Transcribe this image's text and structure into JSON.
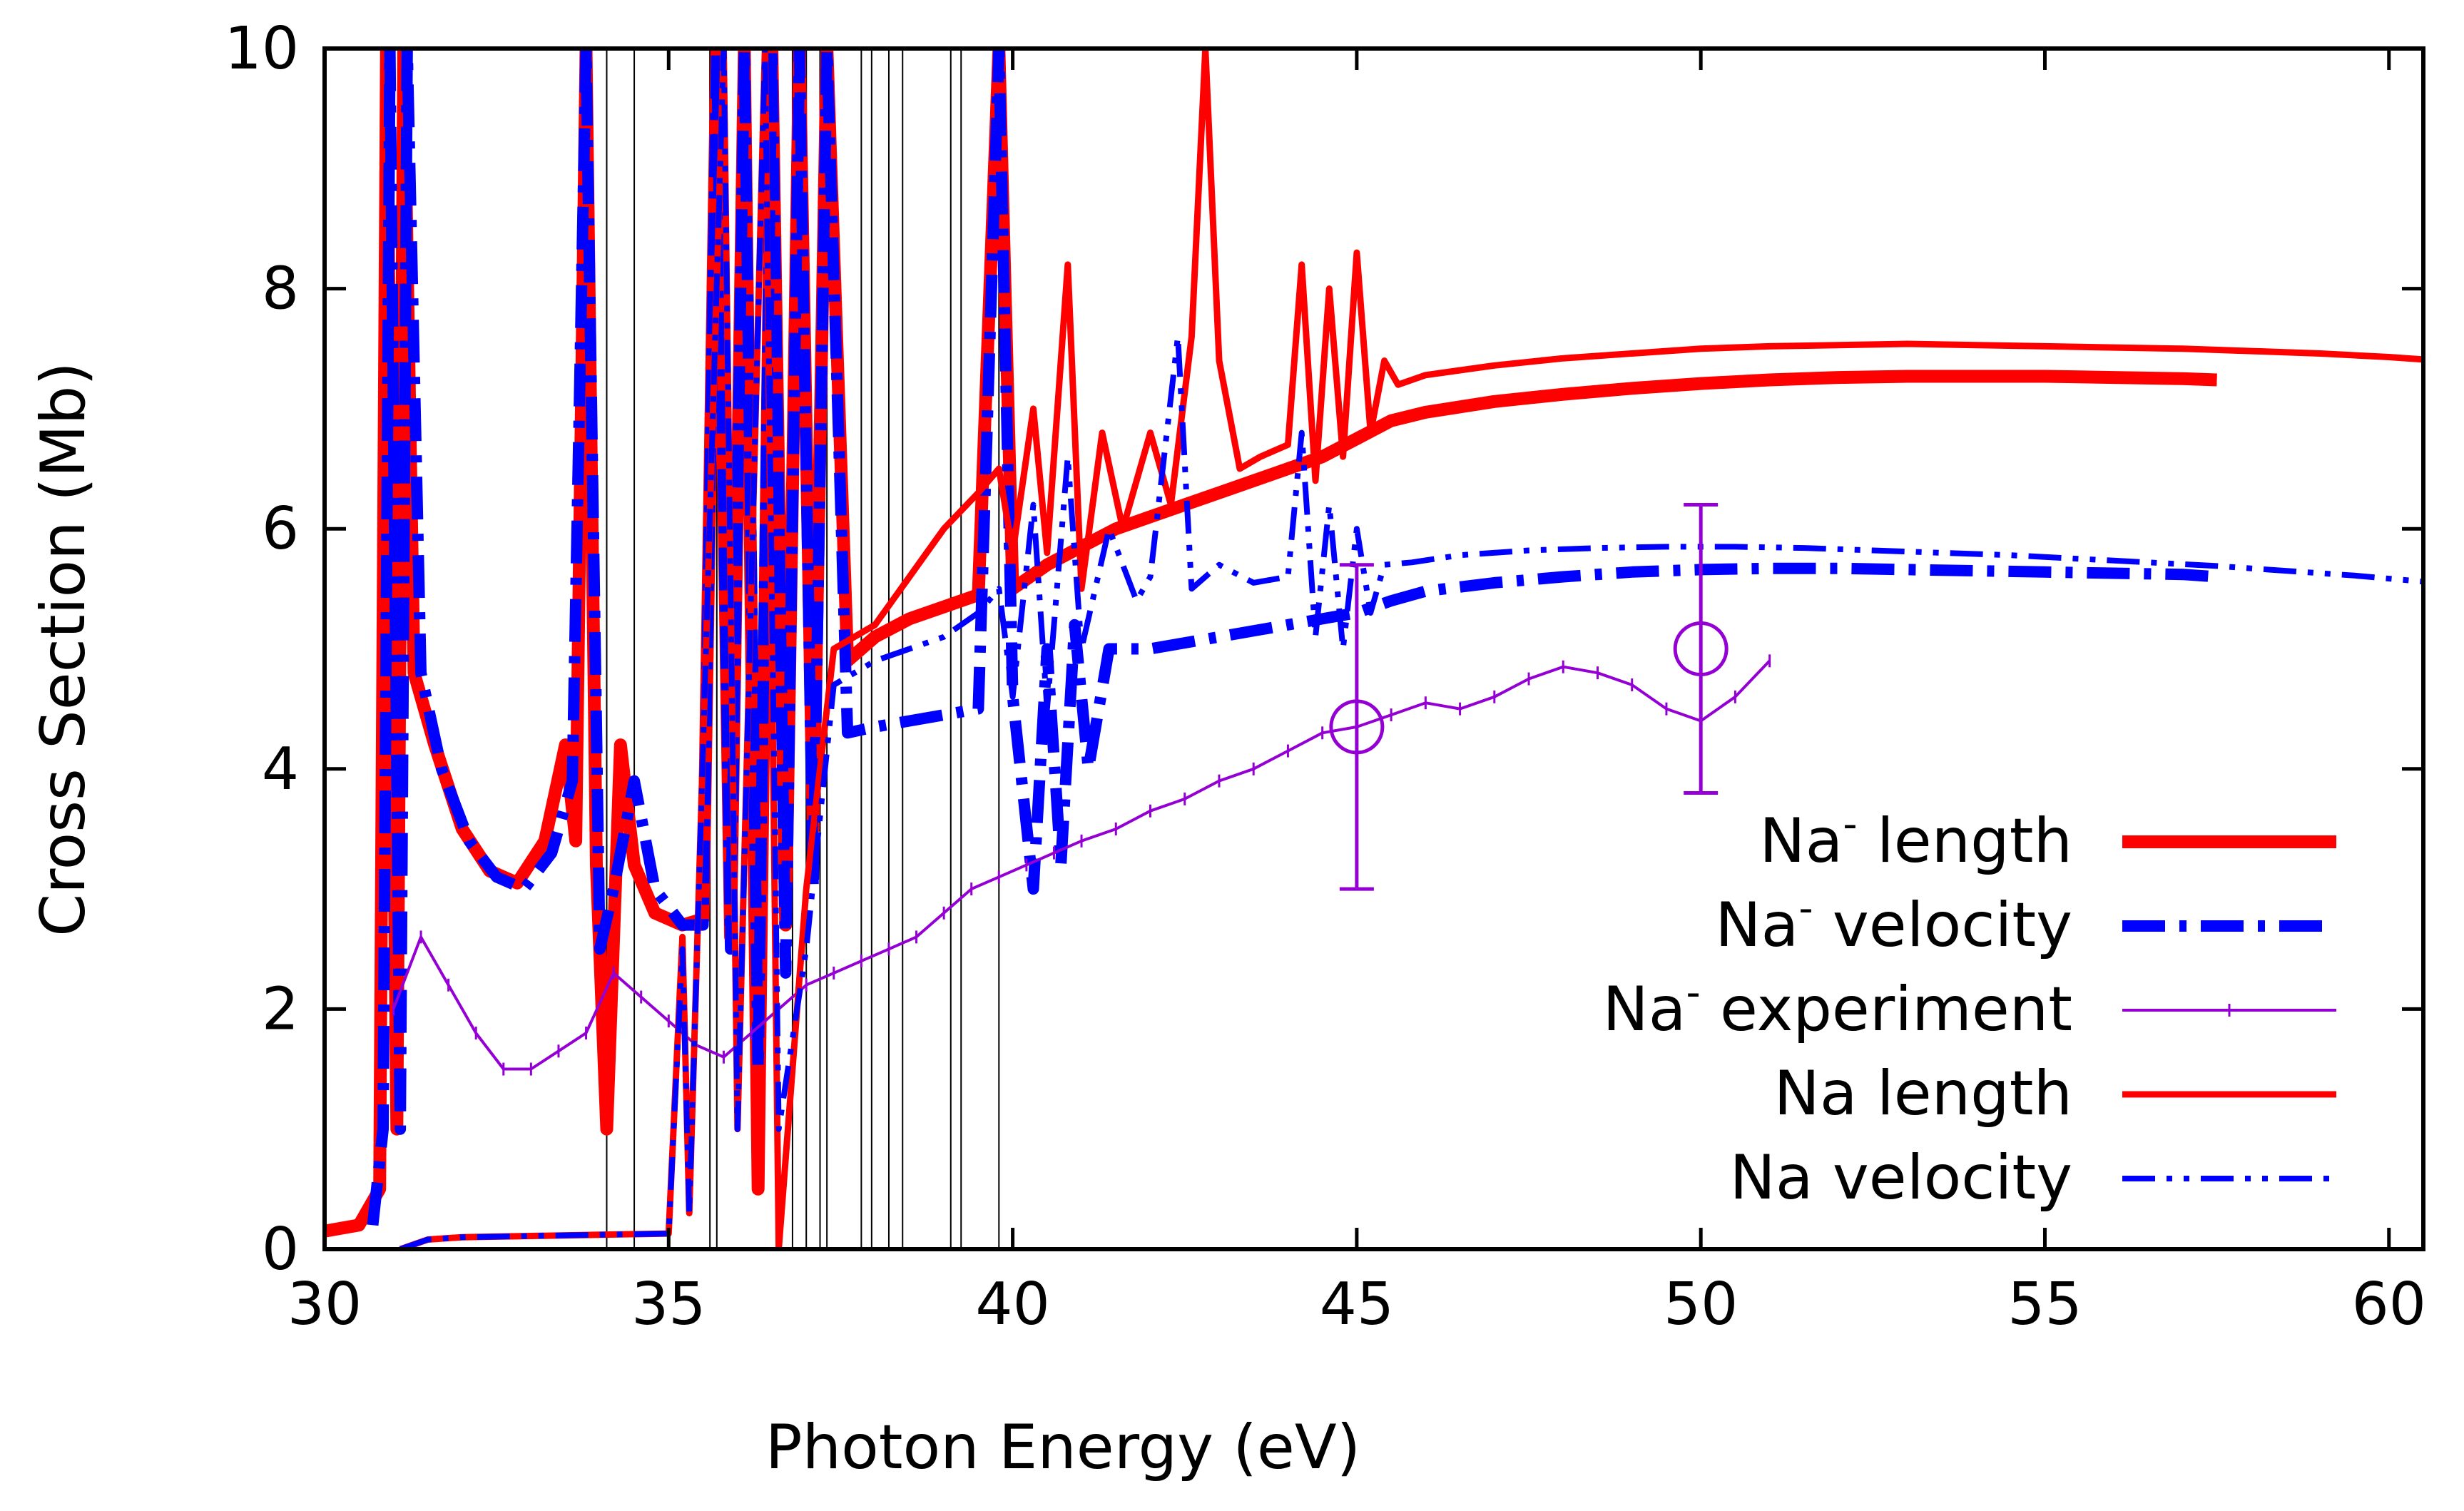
{
  "chart_data": {
    "type": "line",
    "title": "",
    "xlabel": "Photon Energy (eV)",
    "ylabel": "Cross Section (Mb)",
    "xlim": [
      30,
      60.5
    ],
    "ylim": [
      0,
      10
    ],
    "xticks": [
      30,
      35,
      40,
      45,
      50,
      55,
      60
    ],
    "yticks": [
      0,
      2,
      4,
      6,
      8,
      10
    ],
    "legend_position": "center-right",
    "threshold_lines": [
      34.1,
      34.5,
      35.6,
      35.7,
      36.8,
      37.0,
      37.2,
      37.3,
      37.8,
      37.95,
      38.2,
      38.4,
      39.1,
      39.25,
      39.8
    ],
    "series": [
      {
        "name": "Na⁻ length",
        "name_base": "Na",
        "name_sup": "-",
        "name_rest": " length",
        "color": "#ff0000",
        "style": "thick-solid",
        "points": [
          [
            30,
            0.15
          ],
          [
            30.5,
            0.2
          ],
          [
            30.8,
            0.5
          ],
          [
            30.9,
            10
          ],
          [
            31.05,
            1
          ],
          [
            31.15,
            10
          ],
          [
            31.3,
            4.8
          ],
          [
            31.6,
            4.2
          ],
          [
            32.0,
            3.5
          ],
          [
            32.4,
            3.15
          ],
          [
            32.8,
            3.05
          ],
          [
            33.2,
            3.4
          ],
          [
            33.5,
            4.2
          ],
          [
            33.65,
            3.4
          ],
          [
            33.8,
            10
          ],
          [
            33.95,
            3.2
          ],
          [
            34.1,
            1.0
          ],
          [
            34.3,
            4.2
          ],
          [
            34.5,
            3.2
          ],
          [
            34.8,
            2.8
          ],
          [
            35.2,
            2.7
          ],
          [
            35.5,
            2.75
          ],
          [
            35.7,
            10
          ],
          [
            35.9,
            2.6
          ],
          [
            36.1,
            10
          ],
          [
            36.3,
            0.5
          ],
          [
            36.5,
            10
          ],
          [
            36.7,
            2.7
          ],
          [
            36.9,
            10
          ],
          [
            37.1,
            3.5
          ],
          [
            37.3,
            10
          ],
          [
            37.6,
            4.9
          ],
          [
            38.0,
            5.1
          ],
          [
            38.5,
            5.25
          ],
          [
            39.0,
            5.35
          ],
          [
            39.5,
            5.45
          ],
          [
            39.8,
            10
          ],
          [
            40.0,
            5.5
          ],
          [
            40.5,
            5.7
          ],
          [
            41.0,
            5.85
          ],
          [
            41.5,
            6.0
          ],
          [
            42.0,
            6.1
          ],
          [
            42.5,
            6.2
          ],
          [
            43.0,
            6.3
          ],
          [
            43.5,
            6.4
          ],
          [
            44.0,
            6.5
          ],
          [
            44.5,
            6.6
          ],
          [
            45.0,
            6.75
          ],
          [
            45.5,
            6.9
          ],
          [
            46,
            6.97
          ],
          [
            47,
            7.06
          ],
          [
            48,
            7.12
          ],
          [
            49,
            7.17
          ],
          [
            50,
            7.21
          ],
          [
            51,
            7.24
          ],
          [
            52,
            7.26
          ],
          [
            53,
            7.27
          ],
          [
            54,
            7.27
          ],
          [
            55,
            7.27
          ],
          [
            56,
            7.26
          ],
          [
            57,
            7.25
          ],
          [
            57.5,
            7.24
          ]
        ]
      },
      {
        "name": "Na⁻ velocity",
        "name_base": "Na",
        "name_sup": "-",
        "name_rest": " velocity",
        "color": "#0000ff",
        "style": "thick-dash-dot",
        "points": [
          [
            30.7,
            0.2
          ],
          [
            30.85,
            1
          ],
          [
            30.95,
            10
          ],
          [
            31.1,
            1
          ],
          [
            31.2,
            10
          ],
          [
            31.4,
            4.8
          ],
          [
            31.7,
            4.0
          ],
          [
            32.1,
            3.4
          ],
          [
            32.5,
            3.1
          ],
          [
            32.9,
            3.0
          ],
          [
            33.3,
            3.3
          ],
          [
            33.6,
            3.9
          ],
          [
            33.8,
            10
          ],
          [
            34.0,
            2.5
          ],
          [
            34.2,
            3.0
          ],
          [
            34.5,
            3.9
          ],
          [
            34.8,
            3.0
          ],
          [
            35.2,
            2.7
          ],
          [
            35.5,
            2.7
          ],
          [
            35.7,
            10
          ],
          [
            35.9,
            2.5
          ],
          [
            36.1,
            10
          ],
          [
            36.3,
            1.5
          ],
          [
            36.5,
            10
          ],
          [
            36.7,
            2.3
          ],
          [
            36.9,
            10
          ],
          [
            37.1,
            3.0
          ],
          [
            37.3,
            10
          ],
          [
            37.6,
            4.3
          ],
          [
            38.0,
            4.35
          ],
          [
            38.5,
            4.4
          ],
          [
            39.0,
            4.45
          ],
          [
            39.5,
            4.5
          ],
          [
            39.8,
            10
          ],
          [
            40.0,
            4.6
          ],
          [
            40.3,
            3.0
          ],
          [
            40.5,
            5.0
          ],
          [
            40.7,
            3.2
          ],
          [
            40.9,
            5.2
          ],
          [
            41.1,
            4.0
          ],
          [
            41.4,
            5.0
          ],
          [
            42.0,
            5.0
          ],
          [
            42.5,
            5.05
          ],
          [
            43.0,
            5.1
          ],
          [
            43.5,
            5.15
          ],
          [
            44.0,
            5.2
          ],
          [
            44.5,
            5.25
          ],
          [
            45.0,
            5.3
          ],
          [
            45.5,
            5.4
          ],
          [
            46,
            5.48
          ],
          [
            47,
            5.55
          ],
          [
            48,
            5.6
          ],
          [
            49,
            5.64
          ],
          [
            50,
            5.66
          ],
          [
            51,
            5.67
          ],
          [
            52,
            5.67
          ],
          [
            53,
            5.66
          ],
          [
            54,
            5.65
          ],
          [
            55,
            5.64
          ],
          [
            56,
            5.63
          ],
          [
            57,
            5.62
          ],
          [
            57.5,
            5.6
          ]
        ]
      },
      {
        "name": "Na⁻ experiment",
        "name_base": "Na",
        "name_sup": "-",
        "name_rest": " experiment",
        "color": "#9400d3",
        "style": "thin-points",
        "points": [
          [
            31.0,
            2.0
          ],
          [
            31.4,
            2.6
          ],
          [
            31.8,
            2.2
          ],
          [
            32.2,
            1.8
          ],
          [
            32.6,
            1.5
          ],
          [
            33.0,
            1.5
          ],
          [
            33.4,
            1.65
          ],
          [
            33.8,
            1.8
          ],
          [
            34.2,
            2.3
          ],
          [
            34.6,
            2.1
          ],
          [
            35.0,
            1.9
          ],
          [
            35.4,
            1.7
          ],
          [
            35.8,
            1.6
          ],
          [
            36.2,
            1.8
          ],
          [
            36.6,
            2.0
          ],
          [
            37.0,
            2.2
          ],
          [
            37.4,
            2.3
          ],
          [
            37.8,
            2.4
          ],
          [
            38.2,
            2.5
          ],
          [
            38.6,
            2.6
          ],
          [
            39.0,
            2.8
          ],
          [
            39.4,
            3.0
          ],
          [
            39.8,
            3.1
          ],
          [
            40.2,
            3.2
          ],
          [
            40.6,
            3.3
          ],
          [
            41.0,
            3.4
          ],
          [
            41.5,
            3.5
          ],
          [
            42.0,
            3.65
          ],
          [
            42.5,
            3.75
          ],
          [
            43.0,
            3.9
          ],
          [
            43.5,
            4.0
          ],
          [
            44.0,
            4.15
          ],
          [
            44.5,
            4.3
          ],
          [
            45.0,
            4.35
          ],
          [
            45.5,
            4.45
          ],
          [
            46.0,
            4.55
          ],
          [
            46.5,
            4.5
          ],
          [
            47.0,
            4.6
          ],
          [
            47.5,
            4.75
          ],
          [
            48.0,
            4.85
          ],
          [
            48.5,
            4.8
          ],
          [
            49.0,
            4.7
          ],
          [
            49.5,
            4.5
          ],
          [
            50.0,
            4.4
          ],
          [
            50.5,
            4.6
          ],
          [
            51.0,
            4.9
          ]
        ]
      },
      {
        "name": "Na length",
        "name_base": "Na",
        "name_sup": "",
        "name_rest": " length",
        "color": "#ff0000",
        "style": "solid",
        "points": [
          [
            31.1,
            0.0
          ],
          [
            31.5,
            0.08
          ],
          [
            32.0,
            0.1
          ],
          [
            33.0,
            0.11
          ],
          [
            34.0,
            0.12
          ],
          [
            35.0,
            0.13
          ],
          [
            35.2,
            2.6
          ],
          [
            35.3,
            0.3
          ],
          [
            35.8,
            10
          ],
          [
            36.0,
            1
          ],
          [
            36.4,
            10
          ],
          [
            36.6,
            0
          ],
          [
            37.0,
            3
          ],
          [
            37.4,
            5.0
          ],
          [
            38.0,
            5.2
          ],
          [
            38.5,
            5.6
          ],
          [
            39.0,
            6.0
          ],
          [
            39.5,
            6.3
          ],
          [
            39.8,
            6.5
          ],
          [
            40.0,
            5.8
          ],
          [
            40.3,
            7.0
          ],
          [
            40.5,
            5.8
          ],
          [
            40.8,
            8.2
          ],
          [
            41.0,
            5.5
          ],
          [
            41.3,
            6.8
          ],
          [
            41.6,
            6.0
          ],
          [
            42.0,
            6.8
          ],
          [
            42.3,
            6.2
          ],
          [
            42.6,
            7.6
          ],
          [
            42.8,
            10
          ],
          [
            43.0,
            7.4
          ],
          [
            43.3,
            6.5
          ],
          [
            43.6,
            6.6
          ],
          [
            44.0,
            6.7
          ],
          [
            44.2,
            8.2
          ],
          [
            44.4,
            6.4
          ],
          [
            44.6,
            8.0
          ],
          [
            44.8,
            6.6
          ],
          [
            45.0,
            8.3
          ],
          [
            45.2,
            6.8
          ],
          [
            45.4,
            7.4
          ],
          [
            45.6,
            7.2
          ],
          [
            46,
            7.28
          ],
          [
            47,
            7.36
          ],
          [
            48,
            7.42
          ],
          [
            49,
            7.46
          ],
          [
            50,
            7.5
          ],
          [
            51,
            7.52
          ],
          [
            52,
            7.53
          ],
          [
            53,
            7.54
          ],
          [
            54,
            7.53
          ],
          [
            55,
            7.52
          ],
          [
            56,
            7.51
          ],
          [
            57,
            7.5
          ],
          [
            58,
            7.48
          ],
          [
            59,
            7.46
          ],
          [
            60,
            7.43
          ],
          [
            60.5,
            7.41
          ]
        ]
      },
      {
        "name": "Na velocity",
        "name_base": "Na",
        "name_sup": "",
        "name_rest": " velocity",
        "color": "#0000ff",
        "style": "dash-dot-dot",
        "points": [
          [
            31.1,
            0.0
          ],
          [
            31.5,
            0.08
          ],
          [
            32.0,
            0.1
          ],
          [
            33.0,
            0.11
          ],
          [
            34.0,
            0.12
          ],
          [
            35.0,
            0.13
          ],
          [
            35.2,
            2.5
          ],
          [
            35.3,
            0.3
          ],
          [
            35.8,
            10
          ],
          [
            36.0,
            1
          ],
          [
            36.4,
            10
          ],
          [
            36.6,
            1
          ],
          [
            37.0,
            2.5
          ],
          [
            37.4,
            4.7
          ],
          [
            38.0,
            4.9
          ],
          [
            38.5,
            5.0
          ],
          [
            39.0,
            5.1
          ],
          [
            39.5,
            5.3
          ],
          [
            39.8,
            5.5
          ],
          [
            40.0,
            4.6
          ],
          [
            40.3,
            6.2
          ],
          [
            40.5,
            4.5
          ],
          [
            40.8,
            6.6
          ],
          [
            41.0,
            5.0
          ],
          [
            41.4,
            6.0
          ],
          [
            41.8,
            5.4
          ],
          [
            42.0,
            5.6
          ],
          [
            42.4,
            7.6
          ],
          [
            42.6,
            5.5
          ],
          [
            43.0,
            5.7
          ],
          [
            43.5,
            5.55
          ],
          [
            44.0,
            5.6
          ],
          [
            44.2,
            6.8
          ],
          [
            44.4,
            5.1
          ],
          [
            44.6,
            6.2
          ],
          [
            44.8,
            5.0
          ],
          [
            45.0,
            6.0
          ],
          [
            45.2,
            5.3
          ],
          [
            45.4,
            5.7
          ],
          [
            45.8,
            5.72
          ],
          [
            46.5,
            5.78
          ],
          [
            47.5,
            5.82
          ],
          [
            48.5,
            5.84
          ],
          [
            49.5,
            5.85
          ],
          [
            50.5,
            5.85
          ],
          [
            51.5,
            5.84
          ],
          [
            52.5,
            5.82
          ],
          [
            53.5,
            5.8
          ],
          [
            54.5,
            5.78
          ],
          [
            55.5,
            5.75
          ],
          [
            56.5,
            5.72
          ],
          [
            57.5,
            5.69
          ],
          [
            58.5,
            5.65
          ],
          [
            59.5,
            5.61
          ],
          [
            60.5,
            5.56
          ]
        ]
      }
    ],
    "error_points": [
      {
        "x": 45,
        "y": 4.35,
        "low": 3.0,
        "high": 5.7
      },
      {
        "x": 50,
        "y": 5.0,
        "low": 3.8,
        "high": 6.2
      }
    ]
  }
}
